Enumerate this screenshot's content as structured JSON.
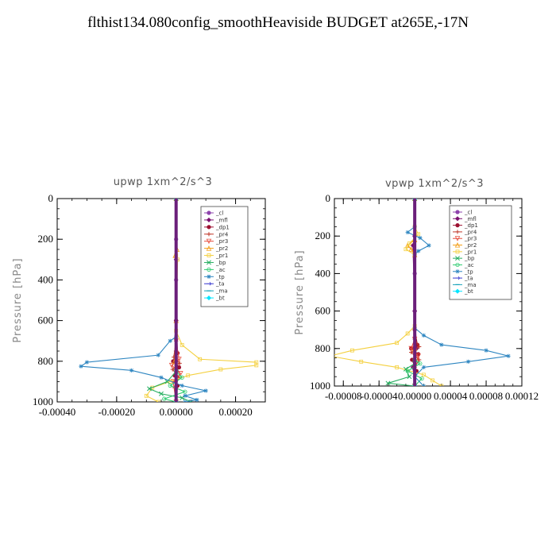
{
  "title": "flthist134.080config_smoothHeaviside  BUDGET at265E,-17N",
  "chart_data": [
    {
      "type": "line",
      "title": "upwp   1xm^2/s^3",
      "ylabel": "Pressure [hPa]",
      "xlabel": "",
      "xlim": [
        -0.0004,
        0.0003
      ],
      "ylim": [
        1000,
        0
      ],
      "xticks": [
        -0.0004,
        -0.0002,
        0.0,
        0.0002
      ],
      "xtick_labels": [
        "-0.00040",
        "-0.00020",
        "0.00000",
        "0.00020"
      ],
      "yticks": [
        0,
        200,
        400,
        600,
        800,
        1000
      ],
      "ytick_labels": [
        "0",
        "200",
        "400",
        "600",
        "800",
        "1000"
      ],
      "legend": "top-right",
      "series": [
        {
          "name": "_cl",
          "color": "#8e44ad",
          "marker": "circle",
          "points": [
            [
              0,
              0
            ],
            [
              0,
              200
            ],
            [
              0,
              400
            ],
            [
              0,
              600
            ],
            [
              0,
              800
            ],
            [
              0,
              1000
            ]
          ]
        },
        {
          "name": "_mfl",
          "color": "#7a1070",
          "marker": "diamond",
          "points": [
            [
              0,
              0
            ],
            [
              0,
              300
            ],
            [
              0,
              600
            ],
            [
              0,
              750
            ],
            [
              3e-06,
              850
            ],
            [
              -3e-06,
              900
            ],
            [
              0,
              1000
            ]
          ]
        },
        {
          "name": "_dp1",
          "color": "#9c1030",
          "marker": "circle",
          "points": [
            [
              0,
              0
            ],
            [
              0,
              600
            ],
            [
              5e-06,
              760
            ],
            [
              -1e-05,
              800
            ],
            [
              1e-05,
              830
            ],
            [
              -5e-06,
              870
            ],
            [
              5e-06,
              920
            ],
            [
              0,
              1000
            ]
          ]
        },
        {
          "name": "_pr4",
          "color": "#c0392b",
          "marker": "plus",
          "points": [
            [
              0,
              0
            ],
            [
              0,
              700
            ],
            [
              -8e-06,
              780
            ],
            [
              1.2e-05,
              810
            ],
            [
              -1.2e-05,
              840
            ],
            [
              1e-05,
              880
            ],
            [
              -5e-06,
              930
            ],
            [
              0,
              1000
            ]
          ]
        },
        {
          "name": "_pr3",
          "color": "#e74c3c",
          "marker": "triangle-down",
          "points": [
            [
              0,
              0
            ],
            [
              0,
              700
            ],
            [
              1e-05,
              790
            ],
            [
              -1.5e-05,
              820
            ],
            [
              1.5e-05,
              860
            ],
            [
              -1e-05,
              900
            ],
            [
              0,
              1000
            ]
          ]
        },
        {
          "name": "_pr2",
          "color": "#f39c12",
          "marker": "triangle",
          "points": [
            [
              0,
              0
            ],
            [
              3e-06,
              250
            ],
            [
              -3e-06,
              280
            ],
            [
              0,
              600
            ],
            [
              -5e-06,
              800
            ],
            [
              0,
              1000
            ]
          ]
        },
        {
          "name": "_pr1",
          "color": "#f4d03f",
          "marker": "square",
          "points": [
            [
              0,
              0
            ],
            [
              0,
              280
            ],
            [
              5e-06,
              300
            ],
            [
              0,
              650
            ],
            [
              2e-05,
              720
            ],
            [
              8e-05,
              790
            ],
            [
              0.00027,
              805
            ],
            [
              0.00027,
              820
            ],
            [
              0.00015,
              840
            ],
            [
              4e-05,
              870
            ],
            [
              -2e-05,
              900
            ],
            [
              -8e-05,
              930
            ],
            [
              -0.0001,
              970
            ],
            [
              -6e-05,
              1000
            ]
          ]
        },
        {
          "name": "_bp",
          "color": "#27ae60",
          "marker": "x",
          "points": [
            [
              0,
              0
            ],
            [
              0,
              850
            ],
            [
              -3e-05,
              900
            ],
            [
              -9e-05,
              935
            ],
            [
              -5e-05,
              960
            ],
            [
              2e-05,
              980
            ],
            [
              5e-05,
              1000
            ]
          ]
        },
        {
          "name": "_ac",
          "color": "#2ecc71",
          "marker": "circle-open",
          "points": [
            [
              0,
              0
            ],
            [
              0,
              850
            ],
            [
              2e-05,
              880
            ],
            [
              -2e-05,
              920
            ],
            [
              3e-05,
              950
            ],
            [
              -4e-05,
              985
            ],
            [
              0,
              1000
            ]
          ]
        },
        {
          "name": "_tp",
          "color": "#2e86c1",
          "marker": "star",
          "points": [
            [
              0,
              0
            ],
            [
              0,
              680
            ],
            [
              -2e-05,
              700
            ],
            [
              -6e-05,
              770
            ],
            [
              -0.0003,
              805
            ],
            [
              -0.00032,
              825
            ],
            [
              -0.00015,
              845
            ],
            [
              -5e-05,
              880
            ],
            [
              2e-05,
              920
            ],
            [
              0.0001,
              945
            ],
            [
              3e-05,
              970
            ],
            [
              7e-05,
              990
            ],
            [
              3e-05,
              1000
            ]
          ]
        },
        {
          "name": "_ta",
          "color": "#3a3ad0",
          "marker": "arrow",
          "points": [
            [
              0,
              0
            ],
            [
              0,
              1000
            ]
          ]
        },
        {
          "name": "_ma",
          "color": "#17a2b8",
          "marker": "dash",
          "points": [
            [
              0,
              0
            ],
            [
              0,
              1000
            ]
          ]
        },
        {
          "name": "_bt",
          "color": "#00e5ff",
          "marker": "diamond-filled",
          "points": [
            [
              0,
              0
            ],
            [
              0,
              1000
            ]
          ]
        }
      ]
    },
    {
      "type": "line",
      "title": "vpwp   1xm^2/s^3",
      "ylabel": "Pressure [hPa]",
      "xlabel": "",
      "xlim": [
        -9e-05,
        0.00012
      ],
      "ylim": [
        1000,
        0
      ],
      "xticks": [
        -8e-05,
        -4e-05,
        0.0,
        4e-05,
        8e-05,
        0.00012
      ],
      "xtick_labels": [
        "-0.00008",
        "-0.00004",
        "0.00000",
        "0.00004",
        "0.00008",
        "0.00012"
      ],
      "yticks": [
        0,
        200,
        400,
        600,
        800,
        1000
      ],
      "ytick_labels": [
        "0",
        "200",
        "400",
        "600",
        "800",
        "1000"
      ],
      "legend": "top-right",
      "series": [
        {
          "name": "_cl",
          "color": "#8e44ad",
          "marker": "circle",
          "points": [
            [
              0,
              0
            ],
            [
              0,
              200
            ],
            [
              0,
              400
            ],
            [
              0,
              600
            ],
            [
              0,
              800
            ],
            [
              0,
              1000
            ]
          ]
        },
        {
          "name": "_mfl",
          "color": "#7a1070",
          "marker": "diamond",
          "points": [
            [
              0,
              0
            ],
            [
              0,
              200
            ],
            [
              -2e-06,
              250
            ],
            [
              0,
              600
            ],
            [
              2e-06,
              800
            ],
            [
              -2e-06,
              900
            ],
            [
              0,
              1000
            ]
          ]
        },
        {
          "name": "_dp1",
          "color": "#9c1030",
          "marker": "circle",
          "points": [
            [
              0,
              0
            ],
            [
              0,
              700
            ],
            [
              3e-06,
              780
            ],
            [
              -4e-06,
              800
            ],
            [
              4e-06,
              830
            ],
            [
              -3e-06,
              860
            ],
            [
              2e-06,
              920
            ],
            [
              0,
              1000
            ]
          ]
        },
        {
          "name": "_pr4",
          "color": "#c0392b",
          "marker": "plus",
          "points": [
            [
              0,
              0
            ],
            [
              0,
              750
            ],
            [
              5e-06,
              790
            ],
            [
              -4e-06,
              820
            ],
            [
              5e-06,
              860
            ],
            [
              0,
              900
            ],
            [
              0,
              1000
            ]
          ]
        },
        {
          "name": "_pr3",
          "color": "#e74c3c",
          "marker": "triangle-down",
          "points": [
            [
              0,
              0
            ],
            [
              0,
              750
            ],
            [
              -4e-06,
              800
            ],
            [
              4e-06,
              840
            ],
            [
              0,
              900
            ],
            [
              0,
              1000
            ]
          ]
        },
        {
          "name": "_pr2",
          "color": "#f39c12",
          "marker": "triangle",
          "points": [
            [
              0,
              0
            ],
            [
              0,
              220
            ],
            [
              -8e-06,
              250
            ],
            [
              -4e-06,
              270
            ],
            [
              0,
              300
            ],
            [
              0,
              800
            ],
            [
              0,
              1000
            ]
          ]
        },
        {
          "name": "_pr1",
          "color": "#f4d03f",
          "marker": "square",
          "points": [
            [
              0,
              0
            ],
            [
              0,
              150
            ],
            [
              4e-06,
              190
            ],
            [
              -6e-06,
              240
            ],
            [
              -1e-05,
              270
            ],
            [
              0,
              300
            ],
            [
              0,
              680
            ],
            [
              -8e-06,
              720
            ],
            [
              -2e-05,
              770
            ],
            [
              -7e-05,
              810
            ],
            [
              -9.5e-05,
              840
            ],
            [
              -6e-05,
              870
            ],
            [
              -2e-05,
              900
            ],
            [
              1e-05,
              940
            ],
            [
              2e-05,
              970
            ],
            [
              3e-05,
              1000
            ]
          ]
        },
        {
          "name": "_bp",
          "color": "#27ae60",
          "marker": "x",
          "points": [
            [
              0,
              0
            ],
            [
              0,
              880
            ],
            [
              -1e-05,
              910
            ],
            [
              -6e-06,
              950
            ],
            [
              -3e-05,
              985
            ],
            [
              0,
              1000
            ]
          ]
        },
        {
          "name": "_ac",
          "color": "#2ecc71",
          "marker": "circle-open",
          "points": [
            [
              0,
              0
            ],
            [
              0,
              860
            ],
            [
              6e-06,
              880
            ],
            [
              -8e-06,
              920
            ],
            [
              8e-06,
              960
            ],
            [
              0,
              1000
            ]
          ]
        },
        {
          "name": "_tp",
          "color": "#2e86c1",
          "marker": "star",
          "points": [
            [
              0,
              0
            ],
            [
              0,
              150
            ],
            [
              -8e-06,
              180
            ],
            [
              6e-06,
              210
            ],
            [
              1.6e-05,
              250
            ],
            [
              4e-06,
              280
            ],
            [
              0,
              300
            ],
            [
              0,
              690
            ],
            [
              1e-05,
              730
            ],
            [
              3e-05,
              780
            ],
            [
              8e-05,
              810
            ],
            [
              0.000105,
              840
            ],
            [
              6e-05,
              870
            ],
            [
              1e-05,
              900
            ],
            [
              0,
              950
            ],
            [
              1e-05,
              1000
            ]
          ]
        },
        {
          "name": "_ta",
          "color": "#3a3ad0",
          "marker": "arrow",
          "points": [
            [
              0,
              0
            ],
            [
              0,
              1000
            ]
          ]
        },
        {
          "name": "_ma",
          "color": "#17a2b8",
          "marker": "dash",
          "points": [
            [
              0,
              0
            ],
            [
              0,
              1000
            ]
          ]
        },
        {
          "name": "_bt",
          "color": "#00e5ff",
          "marker": "diamond-filled",
          "points": [
            [
              0,
              0
            ],
            [
              0,
              1000
            ]
          ]
        }
      ]
    }
  ]
}
